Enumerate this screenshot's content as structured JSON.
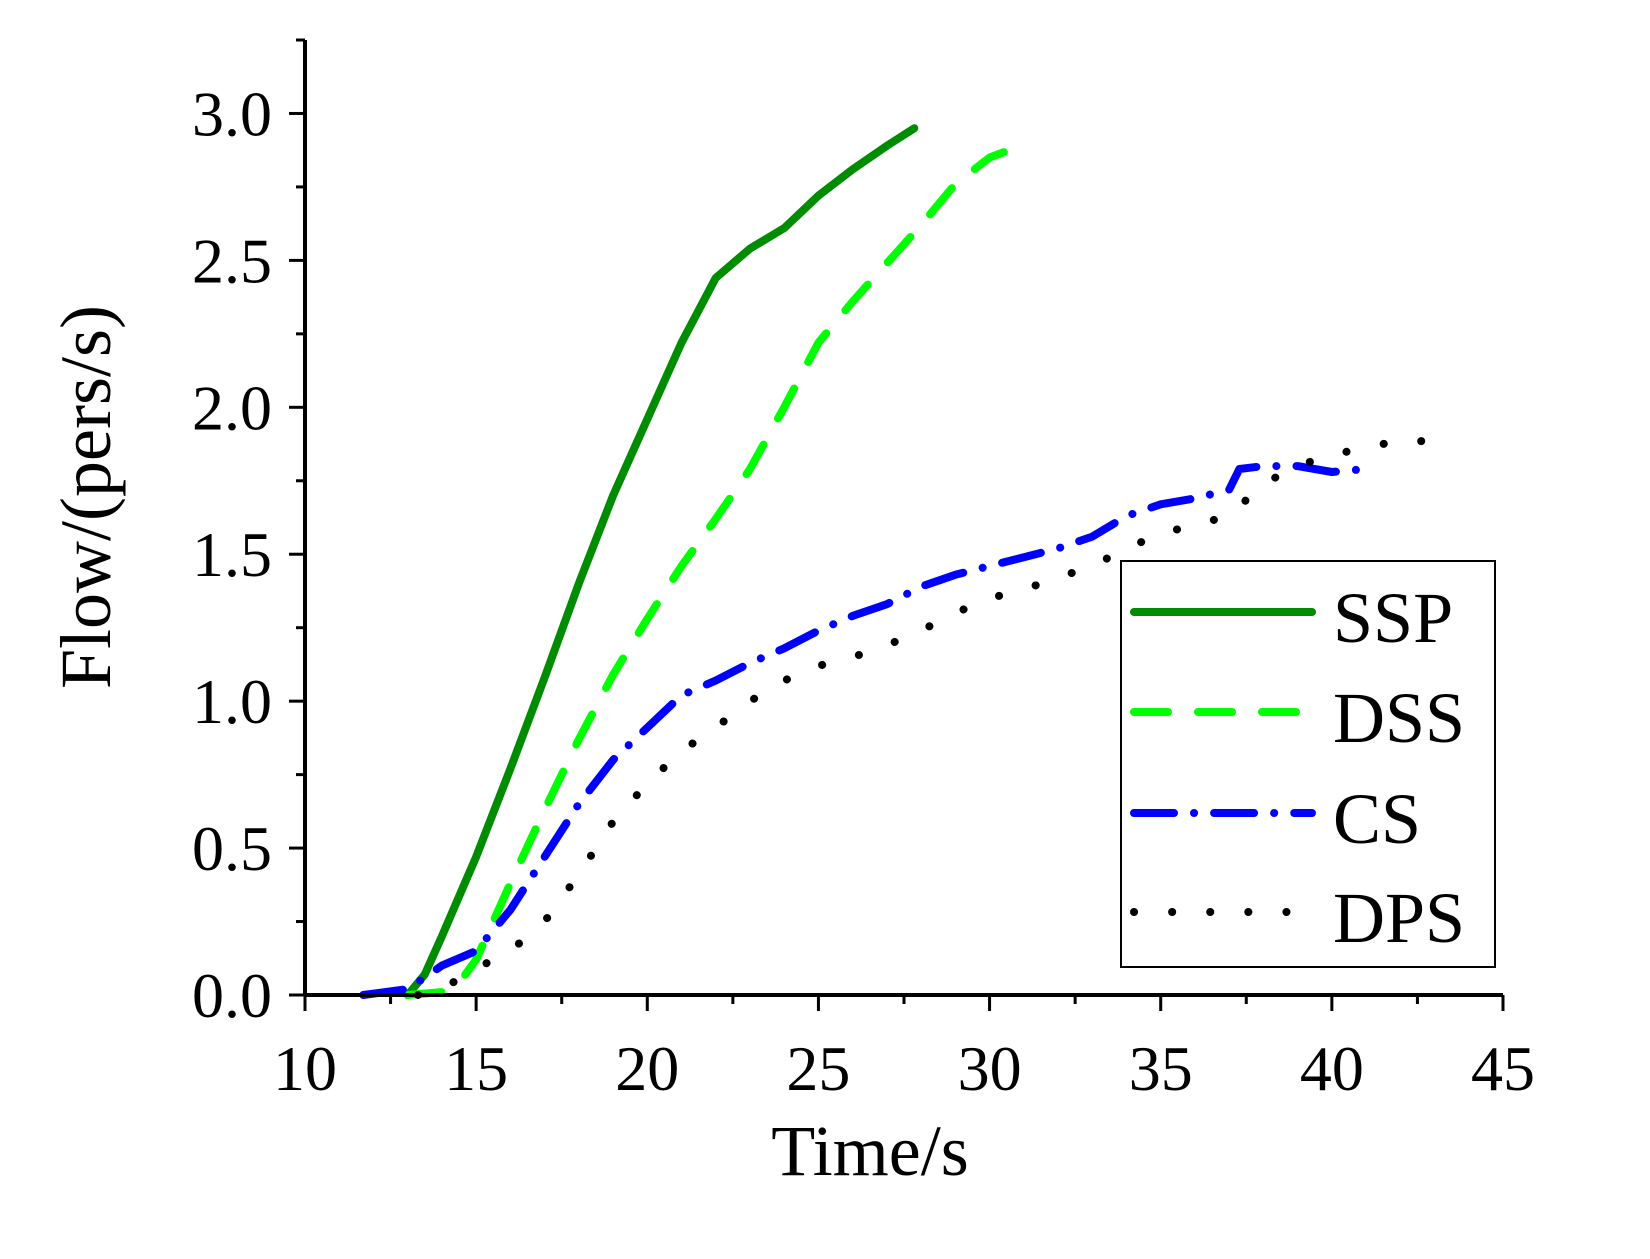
{
  "chart_data": {
    "type": "line",
    "title": "",
    "xlabel": "Time/s",
    "ylabel": "Flow/(pers/s)",
    "xlim": [
      10,
      45
    ],
    "ylim": [
      0,
      3.25
    ],
    "xticks": [
      10,
      15,
      20,
      25,
      30,
      35,
      40,
      45
    ],
    "xtick_labels": [
      "10",
      "15",
      "20",
      "25",
      "30",
      "35",
      "40",
      "45"
    ],
    "yticks": [
      0,
      0.5,
      1.0,
      1.5,
      2.0,
      2.5,
      3.0
    ],
    "ytick_labels": [
      "0.0",
      "0.5",
      "1.0",
      "1.5",
      "2.0",
      "2.5",
      "3.0"
    ],
    "grid": false,
    "legend_position": "bottom-right",
    "series": [
      {
        "name": "SSP",
        "color": "#008c00",
        "style": "solid",
        "x": [
          13,
          13.5,
          14,
          15,
          16,
          17,
          18,
          19,
          20,
          21,
          22,
          23,
          24,
          25,
          26,
          27,
          27.8
        ],
        "y": [
          0,
          0.07,
          0.2,
          0.47,
          0.77,
          1.08,
          1.4,
          1.7,
          1.96,
          2.22,
          2.44,
          2.54,
          2.61,
          2.72,
          2.81,
          2.89,
          2.95
        ]
      },
      {
        "name": "DSS",
        "color": "#00ff00",
        "style": "dash",
        "x": [
          13,
          14,
          14.5,
          15,
          16,
          17,
          18,
          19,
          20,
          21,
          22,
          23,
          24,
          25,
          26,
          27,
          28,
          29,
          30,
          30.9
        ],
        "y": [
          0,
          0.01,
          0.04,
          0.12,
          0.38,
          0.63,
          0.87,
          1.09,
          1.28,
          1.46,
          1.62,
          1.79,
          2.0,
          2.22,
          2.36,
          2.49,
          2.62,
          2.76,
          2.85,
          2.89
        ]
      },
      {
        "name": "CS",
        "color": "#0000ff",
        "style": "dash-dot",
        "x": [
          11.7,
          13,
          14,
          15,
          16,
          17,
          18,
          19,
          20,
          21,
          22,
          23,
          24,
          25,
          26,
          27,
          28,
          29,
          30,
          31,
          32,
          33,
          34,
          35,
          36,
          37,
          37.3,
          38,
          39,
          40,
          41
        ],
        "y": [
          0,
          0.02,
          0.1,
          0.15,
          0.29,
          0.47,
          0.65,
          0.8,
          0.91,
          1.02,
          1.07,
          1.13,
          1.18,
          1.24,
          1.29,
          1.33,
          1.39,
          1.43,
          1.46,
          1.49,
          1.52,
          1.56,
          1.63,
          1.67,
          1.69,
          1.72,
          1.79,
          1.8,
          1.8,
          1.78,
          1.79
        ]
      },
      {
        "name": "DPS",
        "color": "#000000",
        "style": "dot",
        "x": [
          13.3,
          14,
          15,
          16,
          17,
          18,
          19,
          20,
          21,
          22,
          23,
          24,
          25,
          26,
          27,
          28,
          29,
          30,
          31,
          32,
          33,
          34,
          35,
          36,
          37,
          38,
          39,
          40,
          41,
          42,
          43.2
        ],
        "y": [
          0,
          0.02,
          0.09,
          0.15,
          0.25,
          0.41,
          0.59,
          0.72,
          0.83,
          0.91,
          1.0,
          1.07,
          1.12,
          1.15,
          1.19,
          1.24,
          1.3,
          1.35,
          1.38,
          1.42,
          1.46,
          1.52,
          1.57,
          1.6,
          1.63,
          1.74,
          1.8,
          1.84,
          1.86,
          1.89,
          1.88
        ]
      }
    ]
  }
}
